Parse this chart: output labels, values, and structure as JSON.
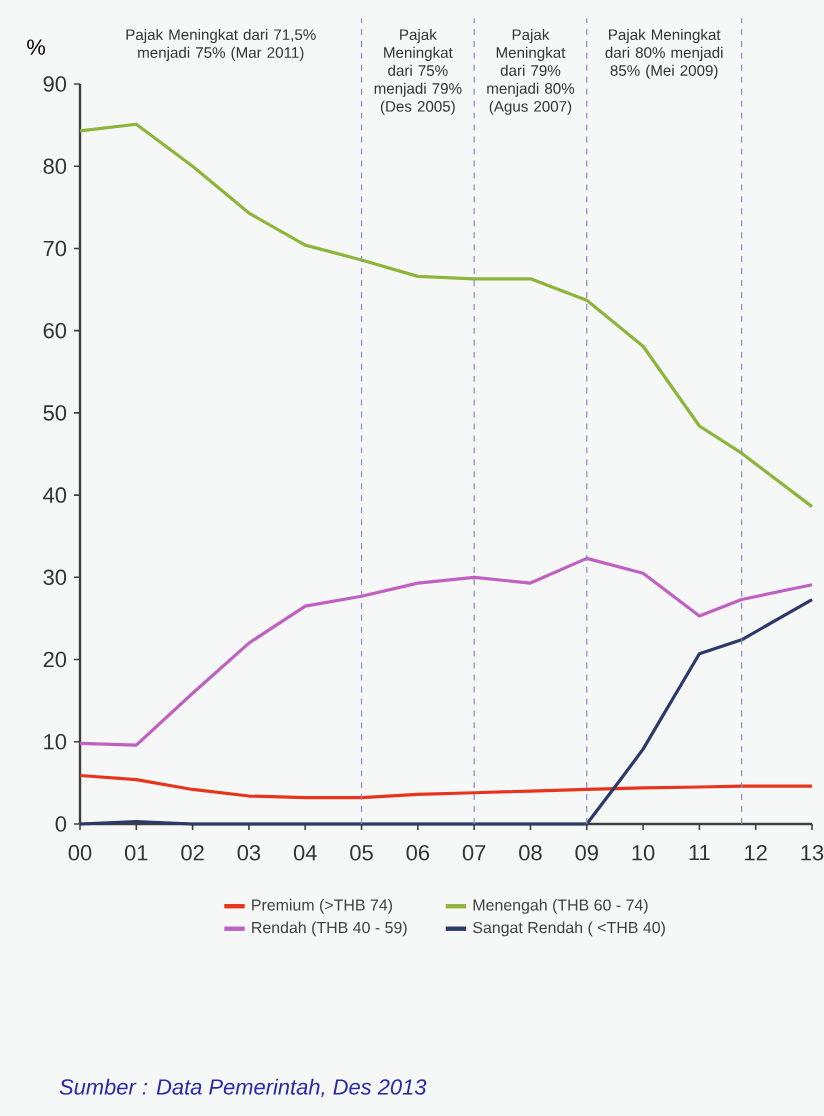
{
  "chart_data": {
    "type": "line",
    "ylabel": "%",
    "x": [
      0,
      1,
      2,
      3,
      4,
      5,
      6,
      7,
      8,
      9,
      10,
      11,
      11.75,
      13
    ],
    "xlim": [
      0,
      13
    ],
    "xticks": [
      {
        "value": 0,
        "label": "00"
      },
      {
        "value": 1,
        "label": "01"
      },
      {
        "value": 2,
        "label": "02"
      },
      {
        "value": 3,
        "label": "03"
      },
      {
        "value": 4,
        "label": "04"
      },
      {
        "value": 5,
        "label": "05"
      },
      {
        "value": 6,
        "label": "06"
      },
      {
        "value": 7,
        "label": "07"
      },
      {
        "value": 8,
        "label": "08"
      },
      {
        "value": 9,
        "label": "09"
      },
      {
        "value": 10,
        "label": "10"
      },
      {
        "value": 11,
        "label": "11"
      },
      {
        "value": 12,
        "label": "12"
      },
      {
        "value": 13,
        "label": "13"
      }
    ],
    "ylim": [
      0,
      90
    ],
    "yticks": [
      0,
      10,
      20,
      30,
      40,
      50,
      60,
      70,
      80,
      90
    ],
    "series": [
      {
        "name": "Premium (>THB 74)",
        "color": "#e8341c",
        "values": [
          5.9,
          5.4,
          4.2,
          3.4,
          3.2,
          3.2,
          3.6,
          3.8,
          4.0,
          4.2,
          4.4,
          4.5,
          4.6,
          4.6
        ]
      },
      {
        "name": "Menengah (THB 60 - 74)",
        "color": "#8db53c",
        "values": [
          84.3,
          85.1,
          80.0,
          74.3,
          70.4,
          68.6,
          66.6,
          66.3,
          66.3,
          63.7,
          58.1,
          48.4,
          45.1,
          38.6
        ]
      },
      {
        "name": "Rendah (THB 40 - 59)",
        "color": "#c060c0",
        "values": [
          9.8,
          9.6,
          15.9,
          22.0,
          26.5,
          27.7,
          29.3,
          30.0,
          29.3,
          32.3,
          30.5,
          25.3,
          27.3,
          29.1
        ]
      },
      {
        "name": "Sangat Rendah ( <THB 40)",
        "color": "#2b3a67",
        "x": [
          0,
          1,
          2,
          3,
          4,
          5,
          6,
          7,
          8,
          9,
          9.6,
          10,
          11,
          11.75,
          13
        ],
        "values": [
          0,
          0.3,
          0,
          0,
          0,
          0,
          0,
          0,
          0,
          0,
          5.4,
          9.1,
          20.7,
          22.4,
          27.3
        ]
      }
    ],
    "ref_lines": [
      {
        "axis": "x",
        "value": 5,
        "color": "#8a8ac0",
        "line_style": "dashed"
      },
      {
        "axis": "x",
        "value": 7,
        "color": "#8a8ac0",
        "line_style": "dashed"
      },
      {
        "axis": "x",
        "value": 9,
        "color": "#8a8ac0",
        "line_style": "dashed"
      },
      {
        "axis": "x",
        "value": 11.75,
        "color": "#8a8ac0",
        "line_style": "dashed"
      }
    ],
    "annotations": [
      "Pajak Meningkat dari 71,5% menjadi 75% (Mar 2011)",
      "Pajak Meningkat dari 75% menjadi 79% (Des 2005)",
      "Pajak Meningkat dari 79% menjadi 80% (Agus 2007)",
      "Pajak Meningkat dari 80% menjadi 85% (Mei 2009)",
      "Sumber : Data Pemerintah, Des 2013"
    ],
    "legend": "bottom",
    "grid": false,
    "marker": "none",
    "line_style": "solid"
  }
}
